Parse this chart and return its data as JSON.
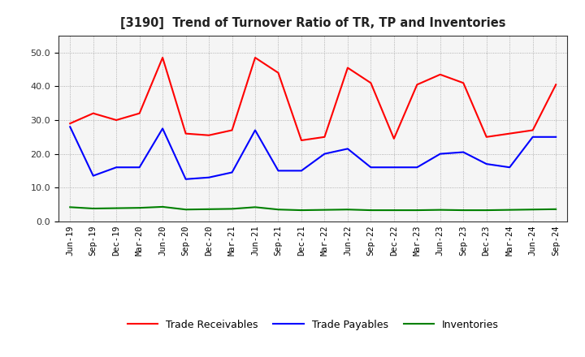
{
  "title": "[3190]  Trend of Turnover Ratio of TR, TP and Inventories",
  "x_labels": [
    "Jun-19",
    "Sep-19",
    "Dec-19",
    "Mar-20",
    "Jun-20",
    "Sep-20",
    "Dec-20",
    "Mar-21",
    "Jun-21",
    "Sep-21",
    "Dec-21",
    "Mar-22",
    "Jun-22",
    "Sep-22",
    "Dec-22",
    "Mar-23",
    "Jun-23",
    "Sep-23",
    "Dec-23",
    "Mar-24",
    "Jun-24",
    "Sep-24"
  ],
  "trade_receivables": [
    29.0,
    32.0,
    30.0,
    32.0,
    48.5,
    26.0,
    25.5,
    27.0,
    48.5,
    44.0,
    24.0,
    25.0,
    45.5,
    41.0,
    24.5,
    40.5,
    43.5,
    41.0,
    25.0,
    26.0,
    27.0,
    40.5
  ],
  "trade_payables": [
    28.0,
    13.5,
    16.0,
    16.0,
    27.5,
    12.5,
    13.0,
    14.5,
    27.0,
    15.0,
    15.0,
    20.0,
    21.5,
    16.0,
    16.0,
    16.0,
    20.0,
    20.5,
    17.0,
    16.0,
    25.0,
    25.0
  ],
  "inventories": [
    4.2,
    3.8,
    3.9,
    4.0,
    4.3,
    3.5,
    3.6,
    3.7,
    4.2,
    3.5,
    3.3,
    3.4,
    3.5,
    3.3,
    3.3,
    3.3,
    3.4,
    3.3,
    3.3,
    3.4,
    3.5,
    3.6
  ],
  "tr_color": "#ff0000",
  "tp_color": "#0000ff",
  "inv_color": "#008000",
  "ylim": [
    0.0,
    55.0
  ],
  "yticks": [
    0.0,
    10.0,
    20.0,
    30.0,
    40.0,
    50.0
  ],
  "grid_color": "#888888",
  "bg_color": "#ffffff",
  "plot_bg_color": "#f5f5f5",
  "legend_labels": [
    "Trade Receivables",
    "Trade Payables",
    "Inventories"
  ]
}
